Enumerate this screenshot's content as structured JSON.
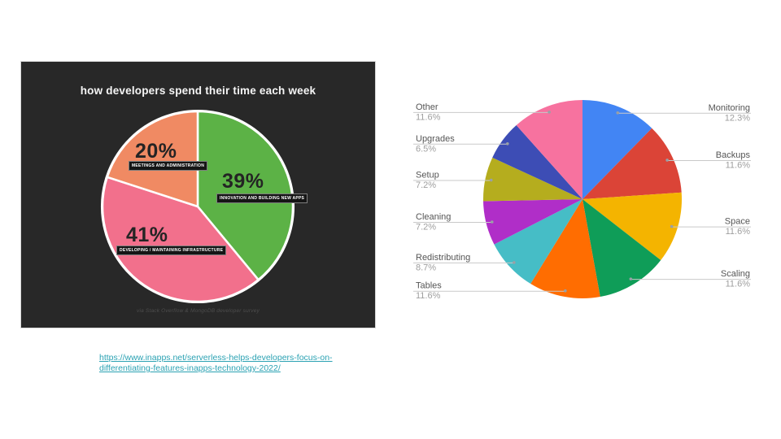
{
  "slide": {
    "background": "#ffffff"
  },
  "source_link": {
    "lines": [
      "https://www.inapps.net/serverless-helps-developers-focus-on-",
      "differentiating-features-inapps-technology-2022/"
    ],
    "href_text": "https://www.inapps.net/serverless-helps-developers-focus-on-differentiating-features-inapps-technology-2022/",
    "color": "#2BA2B3"
  },
  "chart_data": [
    {
      "type": "pie",
      "title": "how developers spend their time each week",
      "caption": "via Stack Overflow & MongoDB developer survey",
      "background": "#282828",
      "slice_divider_color": "#ffffff",
      "legend_position": "on-slice-boxes",
      "slices": [
        {
          "label": "INNOVATION AND BUILDING NEW APPS",
          "pct_label": "39%",
          "value": 39,
          "color": "#5CB246"
        },
        {
          "label": "DEVELOPING / MAINTAINING INFRASTRUCTURE",
          "pct_label": "41%",
          "value": 41,
          "color": "#F2708C"
        },
        {
          "label": "MEETINGS AND ADMINISTRATION",
          "pct_label": "20%",
          "value": 20,
          "color": "#F08A63"
        }
      ]
    },
    {
      "type": "pie",
      "title": "",
      "legend_position": "callout-labels",
      "label_color": "#555555",
      "pct_color": "#9e9e9e",
      "leader_line_color": "#c9c9c9",
      "slices": [
        {
          "label": "Monitoring",
          "pct_label": "12.3%",
          "value": 12.3,
          "color": "#4285F4",
          "side": "right"
        },
        {
          "label": "Backups",
          "pct_label": "11.6%",
          "value": 11.6,
          "color": "#DB4437",
          "side": "right"
        },
        {
          "label": "Space",
          "pct_label": "11.6%",
          "value": 11.6,
          "color": "#F4B400",
          "side": "right"
        },
        {
          "label": "Scaling",
          "pct_label": "11.6%",
          "value": 11.6,
          "color": "#0F9D58",
          "side": "right"
        },
        {
          "label": "Tables",
          "pct_label": "11.6%",
          "value": 11.6,
          "color": "#FF6D01",
          "side": "left"
        },
        {
          "label": "Redistributing",
          "pct_label": "8.7%",
          "value": 8.7,
          "color": "#46BDC6",
          "side": "left"
        },
        {
          "label": "Cleaning",
          "pct_label": "7.2%",
          "value": 7.2,
          "color": "#B02EC8",
          "side": "left"
        },
        {
          "label": "Setup",
          "pct_label": "7.2%",
          "value": 7.2,
          "color": "#B5AD1E",
          "side": "left"
        },
        {
          "label": "Upgrades",
          "pct_label": "6.5%",
          "value": 6.5,
          "color": "#3D4DB5",
          "side": "left"
        },
        {
          "label": "Other",
          "pct_label": "11.6%",
          "value": 11.6,
          "color": "#F7729F",
          "side": "left"
        }
      ]
    }
  ]
}
